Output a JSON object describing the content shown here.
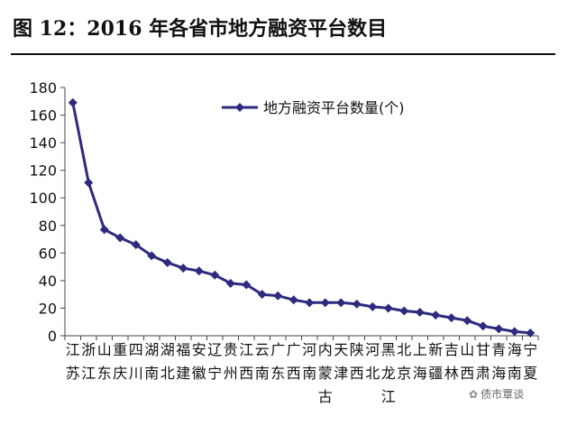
{
  "figure": {
    "title": "图 12：2016 年各省市地方融资平台数目",
    "watermark": "债市覃谈"
  },
  "colors": {
    "series": "#2e2a7e",
    "axis": "#444444",
    "text": "#111111"
  },
  "chart_data": {
    "type": "line",
    "title": "",
    "xlabel": "",
    "ylabel": "",
    "ylim": [
      0,
      180
    ],
    "yticks": [
      0,
      20,
      40,
      60,
      80,
      100,
      120,
      140,
      160,
      180
    ],
    "grid": false,
    "legend_position": "top-right",
    "categories": [
      "江苏",
      "浙江",
      "山东",
      "重庆",
      "四川",
      "湖南",
      "湖北",
      "福建",
      "安徽",
      "辽宁",
      "贵州",
      "江西",
      "云南",
      "广东",
      "广西",
      "河南",
      "内蒙古",
      "天津",
      "陕西",
      "河北",
      "黑龙江",
      "北京",
      "上海",
      "新疆",
      "吉林",
      "山西",
      "甘肃",
      "青海",
      "海南",
      "宁夏"
    ],
    "series": [
      {
        "name": "地方融资平台数量(个)",
        "values": [
          169,
          111,
          77,
          71,
          66,
          58,
          53,
          49,
          47,
          44,
          38,
          37,
          30,
          29,
          26,
          24,
          24,
          24,
          23,
          21,
          20,
          18,
          17,
          15,
          13,
          11,
          7,
          5,
          3,
          2
        ]
      }
    ]
  }
}
